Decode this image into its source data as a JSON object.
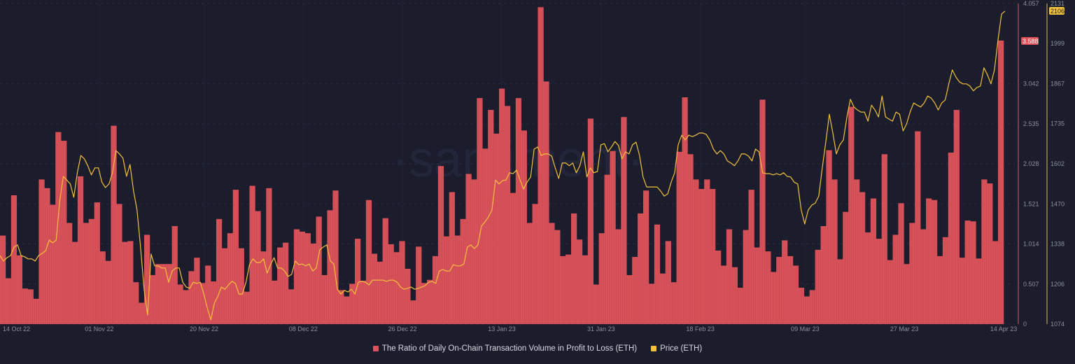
{
  "chart_data": {
    "type": "bar+line",
    "watermark": "·santiment·",
    "x_ticks": [
      "14 Oct 22",
      "01 Nov 22",
      "20 Nov 22",
      "08 Dec 22",
      "26 Dec 22",
      "13 Jan 23",
      "31 Jan 23",
      "18 Feb 23",
      "09 Mar 23",
      "27 Mar 23",
      "14 Apr 23"
    ],
    "x_range": [
      "14 Oct 22",
      "14 Apr 23"
    ],
    "left_axis": {
      "ticks": [
        "0",
        "0.507",
        "1.014",
        "1.521",
        "2.028",
        "2.535",
        "3.042",
        "4.057"
      ],
      "ylim": [
        0,
        4.057
      ],
      "last_value": "3.588",
      "color": "#e0525a"
    },
    "right_axis": {
      "ticks": [
        "1074",
        "1206",
        "1338",
        "1470",
        "1602",
        "1735",
        "1867",
        "1999",
        "2131"
      ],
      "ylim": [
        1074,
        2131
      ],
      "last_value": "2106",
      "color": "#f3c13a"
    },
    "series": [
      {
        "name": "The Ratio of Daily On-Chain Transaction Volume in Profit to Loss (ETH)",
        "type": "bar",
        "axis": "left",
        "color": "#d9525a",
        "values": [
          1.12,
          0.58,
          1.63,
          0.87,
          0.45,
          0.44,
          0.32,
          1.83,
          1.72,
          1.51,
          2.43,
          2.32,
          1.28,
          1.04,
          1.87,
          1.28,
          1.33,
          1.54,
          0.92,
          0.8,
          2.51,
          1.52,
          1.04,
          1.05,
          0.53,
          0.27,
          1.13,
          0.62,
          0.76,
          0.76,
          0.76,
          1.24,
          0.5,
          0.43,
          0.67,
          0.84,
          0.52,
          0.74,
          0.54,
          1.33,
          0.96,
          1.15,
          1.7,
          0.96,
          0.41,
          1.75,
          1.43,
          0.92,
          1.72,
          0.55,
          0.97,
          1.03,
          0.44,
          1.2,
          1.17,
          1.15,
          1.02,
          1.36,
          0.62,
          1.44,
          1.69,
          0.43,
          0.35,
          0.51,
          1.08,
          0.55,
          1.57,
          0.89,
          0.79,
          1.34,
          1.01,
          0.91,
          1.05,
          0.7,
          0.3,
          0.98,
          0.52,
          0.56,
          0.86,
          2.0,
          1.11,
          1.67,
          1.12,
          1.33,
          1.9,
          1.83,
          2.86,
          2.22,
          2.71,
          2.41,
          2.98,
          2.76,
          1.66,
          2.86,
          2.45,
          1.28,
          1.52,
          4.01,
          3.07,
          1.28,
          1.19,
          0.86,
          0.88,
          1.4,
          1.07,
          0.87,
          2.6,
          0.5,
          1.15,
          1.89,
          2.19,
          1.2,
          2.62,
          0.62,
          0.85,
          1.4,
          1.69,
          0.51,
          1.26,
          0.64,
          1.05,
          0.53,
          2.18,
          2.87,
          2.15,
          1.83,
          1.71,
          1.83,
          1.71,
          0.93,
          0.74,
          1.2,
          0.72,
          0.46,
          1.19,
          1.7,
          0.97,
          2.84,
          0.92,
          0.66,
          0.85,
          1.06,
          0.86,
          0.74,
          0.46,
          0.35,
          0.43,
          0.94,
          1.24,
          2.2,
          1.83,
          0.82,
          1.42,
          2.75,
          1.83,
          1.67,
          1.16,
          1.59,
          1.08,
          2.15,
          0.81,
          1.13,
          1.53,
          0.76,
          1.28,
          2.44,
          1.2,
          1.59,
          1.57,
          0.86,
          1.1,
          2.17,
          2.71,
          0.84,
          1.31,
          1.3,
          0.83,
          1.83,
          1.78,
          1.05,
          3.588
        ]
      },
      {
        "name": "Price (ETH)",
        "type": "line",
        "axis": "right",
        "color": "#f3c13a",
        "values": [
          1300,
          1282,
          1293,
          1300,
          1328,
          1335,
          1300,
          1296,
          1289,
          1289,
          1282,
          1300,
          1307,
          1316,
          1351,
          1342,
          1351,
          1480,
          1561,
          1549,
          1536,
          1492,
          1573,
          1630,
          1619,
          1596,
          1566,
          1589,
          1589,
          1542,
          1524,
          1536,
          1573,
          1646,
          1635,
          1621,
          1561,
          1600,
          1513,
          1450,
          1328,
          1189,
          1104,
          1305,
          1266,
          1266,
          1259,
          1259,
          1212,
          1249,
          1259,
          1259,
          1212,
          1196,
          1192,
          1212,
          1208,
          1212,
          1173,
          1127,
          1088,
          1143,
          1166,
          1196,
          1189,
          1203,
          1215,
          1208,
          1173,
          1173,
          1212,
          1270,
          1289,
          1277,
          1277,
          1289,
          1242,
          1270,
          1293,
          1259,
          1259,
          1249,
          1231,
          1238,
          1282,
          1270,
          1272,
          1266,
          1272,
          1249,
          1259,
          1319,
          1328,
          1335,
          1282,
          1272,
          1189,
          1173,
          1185,
          1180,
          1189,
          1173,
          1212,
          1215,
          1212,
          1203,
          1219,
          1219,
          1219,
          1219,
          1215,
          1219,
          1219,
          1212,
          1196,
          1189,
          1192,
          1196,
          1189,
          1192,
          1196,
          1201,
          1212,
          1215,
          1208,
          1249,
          1254,
          1249,
          1249,
          1270,
          1266,
          1266,
          1272,
          1328,
          1335,
          1323,
          1335,
          1397,
          1411,
          1427,
          1450,
          1549,
          1536,
          1547,
          1549,
          1573,
          1570,
          1582,
          1549,
          1519,
          1542,
          1559,
          1651,
          1658,
          1630,
          1635,
          1635,
          1628,
          1589,
          1554,
          1605,
          1605,
          1596,
          1605,
          1573,
          1596,
          1642,
          1559,
          1589,
          1573,
          1577,
          1665,
          1669,
          1642,
          1658,
          1676,
          1663,
          1619,
          1642,
          1635,
          1665,
          1674,
          1630,
          1559,
          1526,
          1526,
          1526,
          1526,
          1513,
          1496,
          1503,
          1542,
          1573,
          1665,
          1697,
          1681,
          1697,
          1692,
          1697,
          1704,
          1704,
          1699,
          1681,
          1651,
          1635,
          1646,
          1635,
          1612,
          1605,
          1596,
          1612,
          1635,
          1635,
          1628,
          1612,
          1651,
          1642,
          1573,
          1570,
          1570,
          1566,
          1570,
          1566,
          1573,
          1561,
          1559,
          1542,
          1536,
          1450,
          1404,
          1450,
          1466,
          1473,
          1496,
          1589,
          1674,
          1766,
          1704,
          1635,
          1665,
          1681,
          1757,
          1815,
          1790,
          1780,
          1773,
          1773,
          1743,
          1796,
          1780,
          1757,
          1826,
          1757,
          1750,
          1743,
          1773,
          1766,
          1711,
          1734,
          1773,
          1803,
          1796,
          1790,
          1803,
          1826,
          1819,
          1803,
          1780,
          1803,
          1813,
          1866,
          1912,
          1889,
          1873,
          1866,
          1866,
          1859,
          1843,
          1854,
          1859,
          1919,
          1896,
          1866,
          1912,
          2011,
          2096,
          2106
        ]
      }
    ],
    "legend_position": "bottom-center",
    "grid": true
  }
}
